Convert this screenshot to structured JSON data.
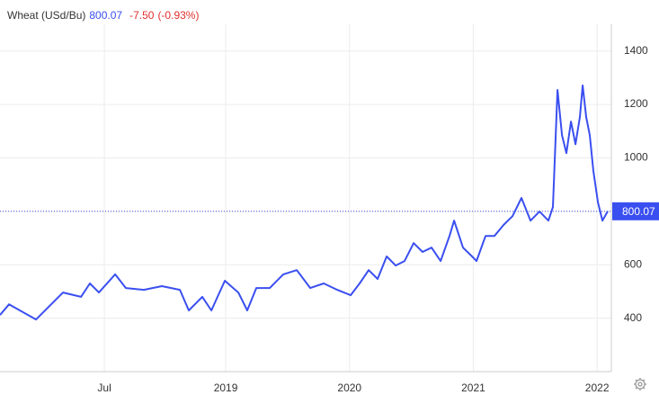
{
  "chart_data": {
    "type": "line",
    "title": "Wheat (USd/Bu)",
    "last_value": 800.07,
    "change": "-7.50",
    "change_pct": "(-0.93%)",
    "x": [
      2017.177,
      2017.25,
      2017.468,
      2017.686,
      2017.831,
      2017.903,
      2017.976,
      2018.107,
      2018.194,
      2018.339,
      2018.484,
      2018.63,
      2018.702,
      2018.811,
      2018.884,
      2018.993,
      2019.102,
      2019.174,
      2019.247,
      2019.356,
      2019.465,
      2019.574,
      2019.683,
      2019.792,
      2019.901,
      2020.009,
      2020.082,
      2020.155,
      2020.227,
      2020.3,
      2020.373,
      2020.445,
      2020.518,
      2020.59,
      2020.663,
      2020.736,
      2020.808,
      2020.845,
      2020.917,
      2020.99,
      2021.026,
      2021.099,
      2021.171,
      2021.244,
      2021.317,
      2021.389,
      2021.462,
      2021.535,
      2021.607,
      2021.643,
      2021.68,
      2021.716,
      2021.752,
      2021.789,
      2021.825,
      2021.861,
      2021.883,
      2021.912,
      2021.941,
      2021.97,
      2022.007,
      2022.043,
      2022.086
    ],
    "series": [
      {
        "name": "Wheat",
        "color": "#3a4ff0",
        "values": [
          412,
          452,
          395,
          496,
          480,
          530,
          496,
          564,
          513,
          506,
          520,
          506,
          429,
          480,
          429,
          540,
          496,
          429,
          513,
          513,
          564,
          580,
          513,
          530,
          506,
          486,
          530,
          580,
          547,
          631,
          597,
          614,
          681,
          648,
          664,
          614,
          708,
          765,
          664,
          631,
          614,
          708,
          708,
          749,
          782,
          850,
          765,
          799,
          765,
          816,
          1254,
          1085,
          1018,
          1136,
          1051,
          1153,
          1271,
          1153,
          1085,
          951,
          833,
          765,
          800.07
        ]
      }
    ],
    "xlim": [
      2017.177,
      2022.115
    ],
    "xticks": [
      {
        "value": 2018.02,
        "label": "Jul"
      },
      2019,
      2020,
      2021,
      2022
    ],
    "ylim": [
      200,
      1500
    ],
    "yticks": [
      400,
      600,
      800,
      1000,
      1200,
      1400
    ],
    "grid": true
  }
}
